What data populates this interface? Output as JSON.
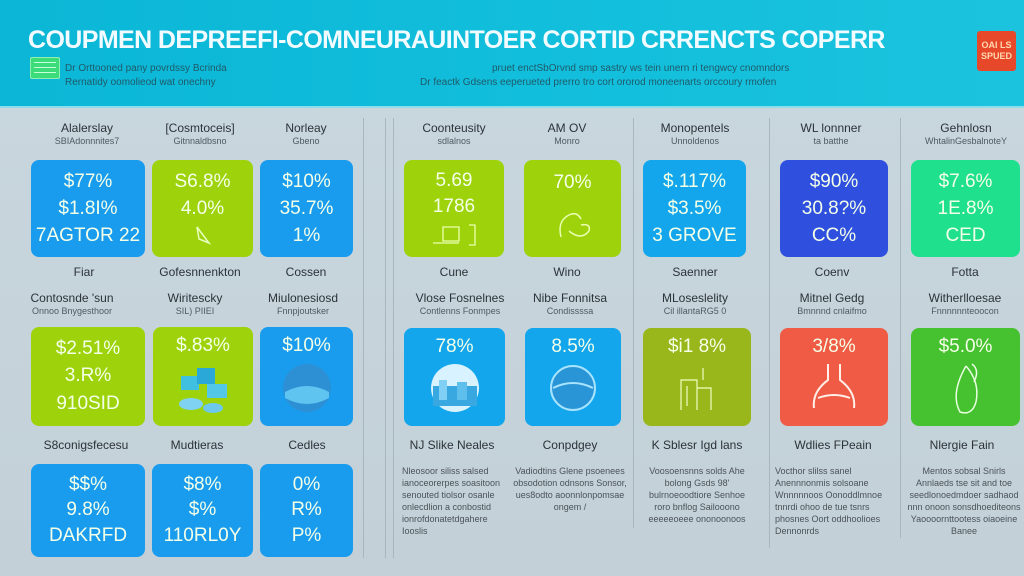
{
  "header": {
    "title": "COUPMEN DEPREEFI-COMNEURAUINTOER CORTID CRRENCTS COPERR",
    "left_lines": [
      "Dr Orttooned pany povrdssy Bcrinda",
      "Rernatidy oomolieod wat onechny"
    ],
    "mid_lines": [
      "pruet enctSbOrvnd smp sastry ws tein unern ri tengwcy cnomndors",
      "Dr feactk Gdsens eeperueted prerro tro cort ororod moneenarts orccoury rmofen"
    ],
    "badge_lines": [
      "OAI LS",
      "SPUED"
    ],
    "accent": "#0bb6d6"
  },
  "left": {
    "row1": [
      {
        "title": "Alalerslay",
        "sub": "SBIAdonnnites7",
        "values": [
          "$77%",
          "$1.8I%",
          "7AGTOR 22"
        ],
        "color": "#1a9cee"
      },
      {
        "title": "[Cosmtoceis]",
        "sub": "Gitnnaldbsno",
        "values": [
          "S6.8%",
          "4.0%"
        ],
        "icon": "leaf-icon",
        "color": "#9ed30c"
      },
      {
        "title": "Norleay",
        "sub": "Gbeno",
        "values": [
          "$10%",
          "35.7%",
          "1%"
        ],
        "color": "#1a9cee"
      }
    ],
    "row1_labels": [
      "Fiar",
      "Gofesnnenkton",
      "Cossen"
    ],
    "row2_heads": [
      {
        "title": "Contosnde 'sun",
        "sub": "Onnoo Bnygesthoor"
      },
      {
        "title": "Wiritescky",
        "sub": "SIL) PIIEI"
      },
      {
        "title": "Miulonesiosd",
        "sub": "Fnnpjoutsker"
      }
    ],
    "row2": [
      {
        "values": [
          "$2.51%",
          "3.R%",
          "910SID"
        ],
        "color": "#9ed30c"
      },
      {
        "values": [
          "$.83%"
        ],
        "icon": "cubes-icon",
        "color": "#9ed30c"
      },
      {
        "values": [
          "$10%"
        ],
        "icon": "globe-icon",
        "color": "#1a9cee"
      }
    ],
    "row2_labels": [
      "S8conigsfecesu",
      "Mudtieras",
      "Cedles"
    ],
    "row3": [
      {
        "values": [
          "$$%",
          "9.8%",
          "DAKRFD"
        ],
        "color": "#1a9cee"
      },
      {
        "values": [
          "$8%",
          "$%",
          "110RL0Y"
        ],
        "color": "#1a9cee"
      },
      {
        "values": [
          "0%",
          "R%",
          "P%"
        ],
        "color": "#1a9cee"
      }
    ]
  },
  "right": {
    "row1": [
      {
        "title": "Coonteusity",
        "sub": "sdlalnos",
        "values": [
          "5.69",
          "1786"
        ],
        "icon": "document-icon",
        "color": "#9ed30c"
      },
      {
        "title": "AM OV",
        "sub": "Monro",
        "values": [
          "70%"
        ],
        "icon": "hand-icon",
        "color": "#9ed30c"
      },
      {
        "title": "Monopentels",
        "sub": "Unnoldenos",
        "values": [
          "$.117%",
          "$3.5%",
          "3 GROVE"
        ],
        "color": "#13a6ec"
      },
      {
        "title": "WL lonnner",
        "sub": "ta batthe",
        "values": [
          "$90%",
          "30.8?%",
          "CC%"
        ],
        "color": "#2f50df"
      },
      {
        "title": "Gehnlosn",
        "sub": "WhtalinGesbalnoteY",
        "values": [
          "$7.6%",
          "1E.8%",
          "CED"
        ],
        "color": "#1fe08c"
      }
    ],
    "row1_labels": [
      "Cune",
      "Wino",
      "Saenner",
      "Coenv",
      "Fotta"
    ],
    "row2_heads": [
      {
        "title": "Vlose Fosnelnes",
        "sub": "Contlenns Fonmpes"
      },
      {
        "title": "Nibe Fonnitsa",
        "sub": "Condissssa"
      },
      {
        "title": "MLoseslelity",
        "sub": "Cil illantaRG5 0"
      },
      {
        "title": "Mitnel Gedg",
        "sub": "Bmnnnd cnlaifmo"
      },
      {
        "title": "Witherlloesae",
        "sub": "Fnnnnnnteoocon"
      }
    ],
    "row2": [
      {
        "values": [
          "78%"
        ],
        "icon": "globe-city-icon",
        "color": "#13a6ec"
      },
      {
        "values": [
          "8.5%"
        ],
        "icon": "globe-icon",
        "color": "#13a6ec"
      },
      {
        "values": [
          "$i1 8%"
        ],
        "icon": "building-icon",
        "color": "#99b71a"
      },
      {
        "values": [
          "3/8%"
        ],
        "icon": "flask-icon",
        "color": "#f05b45"
      },
      {
        "values": [
          "$5.0%"
        ],
        "icon": "leaf-drop-icon",
        "color": "#46c12f"
      }
    ],
    "row2_labels": [
      "NJ Slike Neales",
      "Conpdgey",
      "K Sblesr Igd lans",
      "Wdlies FPeain",
      "Nlergie Fain"
    ],
    "paragraphs": [
      "Nleosoor siliss salsed ianoceorerpes soasitoon senouted tiolsor osanle onlecdlion a conbostid ionrofdonatetdgahere Iooslis",
      "Vadiodtins Glene psoenees obsodotion odnsons Sonsor, ues8odto aoonnlonpomsae ongem /",
      "Voosoensnns solds Ahe bolong Gsds 98' bulrnoeoodtiore Senhoe roro bnflog Sailooono eeeeeoeee ononoonoos",
      "Vocthor slilss sanel Anennnonmis solsoane Wnnnnnoos Oonoddlmnoe tnnrdi ohoo de tue tsnrs phosnes Oort oddhoolioes Dennonrds",
      "Mentos sobsal Snirls Annlaeds tse sit and toe seedlonoedmdoer sadhaod nnn onoon sonsdhoediteons Yaoooornttootess oiaoeine Banee"
    ]
  }
}
